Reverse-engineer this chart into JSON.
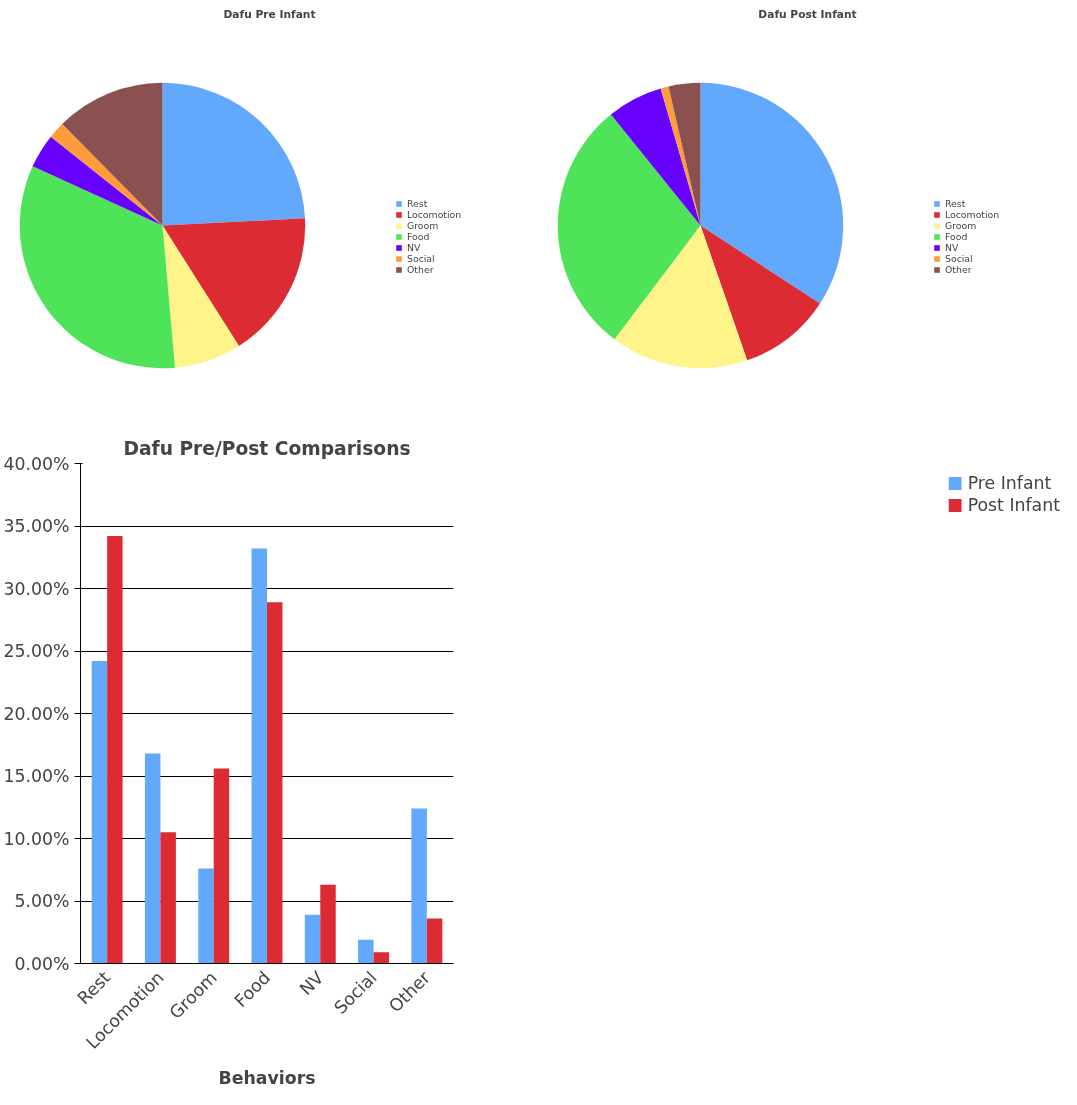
{
  "chart_data": [
    {
      "type": "pie",
      "title": "Dafu Pre Infant",
      "categories": [
        "Rest",
        "Locomotion",
        "Groom",
        "Food",
        "NV",
        "Social",
        "Other"
      ],
      "values": [
        24.2,
        16.8,
        7.6,
        33.2,
        3.9,
        1.9,
        12.4
      ],
      "colors": [
        "#62a8fd",
        "#dc2b33",
        "#fef48a",
        "#4fe35a",
        "#6600ff",
        "#fe9b3a",
        "#8b5151"
      ],
      "legend": "right"
    },
    {
      "type": "pie",
      "title": "Dafu Post Infant",
      "categories": [
        "Rest",
        "Locomotion",
        "Groom",
        "Food",
        "NV",
        "Social",
        "Other"
      ],
      "values": [
        34.2,
        10.5,
        15.6,
        28.9,
        6.3,
        0.9,
        3.6
      ],
      "colors": [
        "#62a8fd",
        "#dc2b33",
        "#fef48a",
        "#4fe35a",
        "#6600ff",
        "#fe9b3a",
        "#8b5151"
      ],
      "legend": "right"
    },
    {
      "type": "bar",
      "title": "Dafu Pre/Post Comparisons",
      "xlabel": "Behaviors",
      "categories": [
        "Rest",
        "Locomotion",
        "Groom",
        "Food",
        "NV",
        "Social",
        "Other"
      ],
      "series": [
        {
          "name": "Pre Infant",
          "color": "#62a8fd",
          "values": [
            24.2,
            16.8,
            7.6,
            33.2,
            3.9,
            1.9,
            12.4
          ]
        },
        {
          "name": "Post Infant",
          "color": "#dc2b33",
          "values": [
            34.2,
            10.5,
            15.6,
            28.9,
            6.3,
            0.9,
            3.6
          ]
        }
      ],
      "ylim": [
        0,
        40
      ],
      "yticks": [
        {
          "value": 0,
          "label": "0.00%"
        },
        {
          "value": 5,
          "label": "5.00%"
        },
        {
          "value": 10,
          "label": "10.00%"
        },
        {
          "value": 15,
          "label": "15.00%"
        },
        {
          "value": 20,
          "label": "20.00%"
        },
        {
          "value": 25,
          "label": "25.00%"
        },
        {
          "value": 30,
          "label": "30.00%"
        },
        {
          "value": 35,
          "label": "35.00%"
        },
        {
          "value": 40,
          "label": "40.00%"
        }
      ],
      "grid": "y",
      "legend": "right"
    }
  ]
}
